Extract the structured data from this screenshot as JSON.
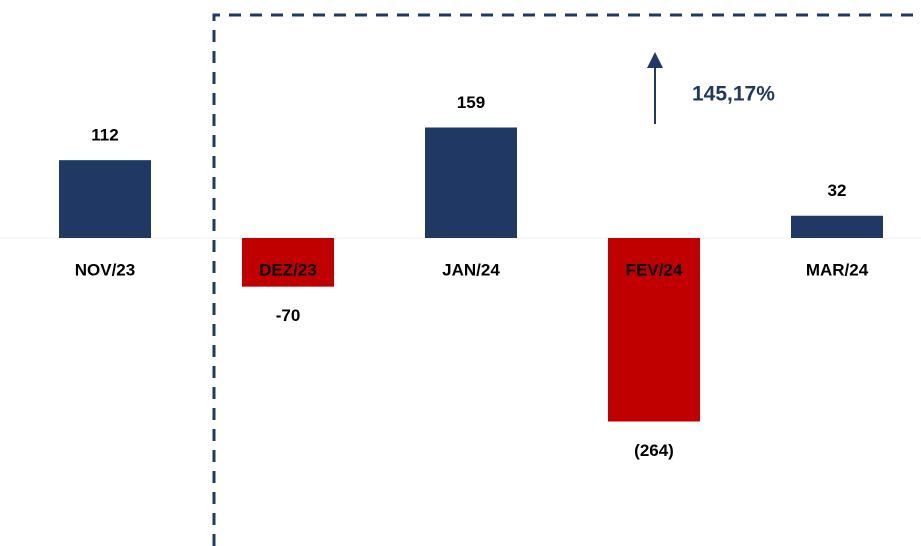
{
  "chart_data": {
    "type": "bar",
    "categories": [
      "NOV/23",
      "DEZ/23",
      "JAN/24",
      "FEV/24",
      "MAR/24"
    ],
    "values": [
      112,
      -70,
      159,
      -264,
      32
    ],
    "value_labels": [
      "112",
      "-70",
      "159",
      "(264)",
      "32"
    ],
    "colors": [
      "#203864",
      "#c00000",
      "#203864",
      "#c00000",
      "#203864"
    ],
    "annotation": "145,17%"
  }
}
